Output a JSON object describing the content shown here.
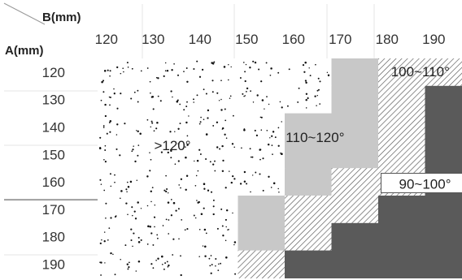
{
  "chart_data": {
    "type": "heatmap",
    "title": "",
    "col_axis_title": "B(mm)",
    "row_axis_title": "A(mm)",
    "columns": [
      "120",
      "130",
      "140",
      "150",
      "160",
      "170",
      "180",
      "190"
    ],
    "rows": [
      "120",
      "130",
      "140",
      "150",
      "160",
      "170",
      "180",
      "190"
    ],
    "zones": [
      {
        "id": "z1",
        "label": ">120°",
        "pattern": "dots"
      },
      {
        "id": "z2",
        "label": "110~120°",
        "pattern": "light-gray"
      },
      {
        "id": "z3",
        "label": "100~110°",
        "pattern": "hatch"
      },
      {
        "id": "z4",
        "label": "90~100°",
        "pattern": "dark-gray"
      }
    ],
    "grid": [
      [
        "z1",
        "z1",
        "z1",
        "z1",
        "z1",
        "z2",
        "z3",
        "z3"
      ],
      [
        "z1",
        "z1",
        "z1",
        "z1",
        "z1",
        "z2",
        "z3",
        "z4"
      ],
      [
        "z1",
        "z1",
        "z1",
        "z1",
        "z2",
        "z2",
        "z3",
        "z4"
      ],
      [
        "z1",
        "z1",
        "z1",
        "z1",
        "z2",
        "z2",
        "z3",
        "z4"
      ],
      [
        "z1",
        "z1",
        "z1",
        "z1",
        "z2",
        "z3",
        "z3",
        "z4"
      ],
      [
        "z1",
        "z1",
        "z1",
        "z2",
        "z3",
        "z3",
        "z4",
        "z4"
      ],
      [
        "z1",
        "z1",
        "z1",
        "z2",
        "z3",
        "z4",
        "z4",
        "z4"
      ],
      [
        "z1",
        "z1",
        "z1",
        "z3",
        "z4",
        "z4",
        "z4",
        "z4"
      ]
    ],
    "colors": {
      "light": "#c8c8c8",
      "dark": "#5a5a5a",
      "dot": "#111111",
      "hatch": "#555555"
    }
  }
}
